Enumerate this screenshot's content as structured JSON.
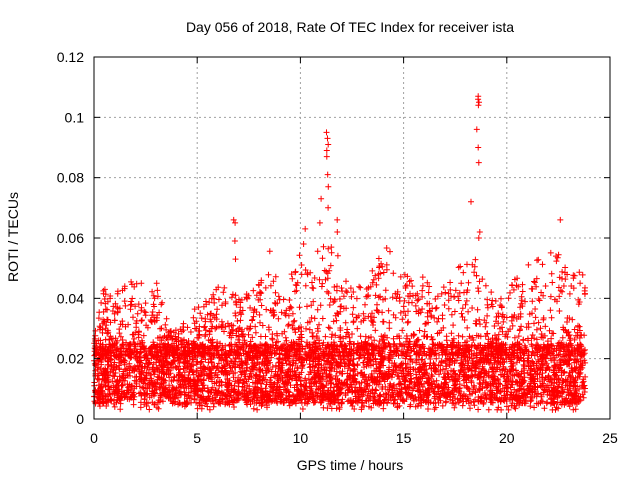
{
  "chart_data": {
    "type": "scatter",
    "title": "Day 056 of 2018, Rate Of TEC Index for receiver ista",
    "xlabel": "GPS time / hours",
    "ylabel": "ROTI / TECUs",
    "xlim": [
      0,
      25
    ],
    "ylim": [
      0,
      0.12
    ],
    "xticks": [
      0,
      5,
      10,
      15,
      20,
      25
    ],
    "xtick_labels": [
      "0",
      "5",
      "10",
      "15",
      "20",
      "25"
    ],
    "yticks": [
      0,
      0.02,
      0.04,
      0.06,
      0.08,
      0.1,
      0.12
    ],
    "ytick_labels": [
      "0",
      "0.02",
      "0.04",
      "0.06",
      "0.08",
      "0.1",
      "0.12"
    ],
    "grid": true,
    "marker": "+",
    "color": "#ff0000",
    "data_x_range": [
      0,
      23.8
    ],
    "baseline_band": [
      0.005,
      0.025
    ],
    "envelope": [
      {
        "x": 0.0,
        "ymax": 0.03
      },
      {
        "x": 0.5,
        "ymax": 0.044
      },
      {
        "x": 1.0,
        "ymax": 0.045
      },
      {
        "x": 1.5,
        "ymax": 0.044
      },
      {
        "x": 2.0,
        "ymax": 0.05
      },
      {
        "x": 2.5,
        "ymax": 0.042
      },
      {
        "x": 3.0,
        "ymax": 0.047
      },
      {
        "x": 3.5,
        "ymax": 0.034
      },
      {
        "x": 4.0,
        "ymax": 0.03
      },
      {
        "x": 4.5,
        "ymax": 0.033
      },
      {
        "x": 5.0,
        "ymax": 0.038
      },
      {
        "x": 5.5,
        "ymax": 0.04
      },
      {
        "x": 6.0,
        "ymax": 0.044
      },
      {
        "x": 6.5,
        "ymax": 0.045
      },
      {
        "x": 7.0,
        "ymax": 0.04
      },
      {
        "x": 7.5,
        "ymax": 0.042
      },
      {
        "x": 8.0,
        "ymax": 0.045
      },
      {
        "x": 8.5,
        "ymax": 0.057
      },
      {
        "x": 9.0,
        "ymax": 0.044
      },
      {
        "x": 9.5,
        "ymax": 0.049
      },
      {
        "x": 10.0,
        "ymax": 0.055
      },
      {
        "x": 10.5,
        "ymax": 0.05
      },
      {
        "x": 11.0,
        "ymax": 0.06
      },
      {
        "x": 11.5,
        "ymax": 0.062
      },
      {
        "x": 12.0,
        "ymax": 0.05
      },
      {
        "x": 12.5,
        "ymax": 0.048
      },
      {
        "x": 13.0,
        "ymax": 0.046
      },
      {
        "x": 13.5,
        "ymax": 0.055
      },
      {
        "x": 14.0,
        "ymax": 0.058
      },
      {
        "x": 14.5,
        "ymax": 0.055
      },
      {
        "x": 15.0,
        "ymax": 0.05
      },
      {
        "x": 15.5,
        "ymax": 0.045
      },
      {
        "x": 16.0,
        "ymax": 0.049
      },
      {
        "x": 16.5,
        "ymax": 0.043
      },
      {
        "x": 17.0,
        "ymax": 0.044
      },
      {
        "x": 17.5,
        "ymax": 0.048
      },
      {
        "x": 18.0,
        "ymax": 0.055
      },
      {
        "x": 18.5,
        "ymax": 0.06
      },
      {
        "x": 19.0,
        "ymax": 0.045
      },
      {
        "x": 19.5,
        "ymax": 0.04
      },
      {
        "x": 20.0,
        "ymax": 0.042
      },
      {
        "x": 20.5,
        "ymax": 0.048
      },
      {
        "x": 21.0,
        "ymax": 0.052
      },
      {
        "x": 21.5,
        "ymax": 0.054
      },
      {
        "x": 22.0,
        "ymax": 0.057
      },
      {
        "x": 22.5,
        "ymax": 0.055
      },
      {
        "x": 23.0,
        "ymax": 0.048
      },
      {
        "x": 23.5,
        "ymax": 0.05
      }
    ],
    "peaks": [
      {
        "x": 6.8,
        "values": [
          0.053,
          0.059,
          0.065,
          0.066
        ]
      },
      {
        "x": 10.2,
        "values": [
          0.058,
          0.063
        ]
      },
      {
        "x": 11.0,
        "values": [
          0.065,
          0.073
        ]
      },
      {
        "x": 11.3,
        "values": [
          0.07,
          0.077,
          0.081,
          0.087,
          0.089,
          0.091,
          0.093,
          0.095
        ]
      },
      {
        "x": 11.8,
        "values": [
          0.062,
          0.066
        ]
      },
      {
        "x": 18.3,
        "values": [
          0.072
        ]
      },
      {
        "x": 18.6,
        "values": [
          0.085,
          0.09,
          0.096,
          0.104,
          0.105,
          0.106,
          0.107
        ]
      },
      {
        "x": 18.7,
        "values": [
          0.06,
          0.062
        ]
      },
      {
        "x": 22.6,
        "values": [
          0.066
        ]
      }
    ]
  }
}
